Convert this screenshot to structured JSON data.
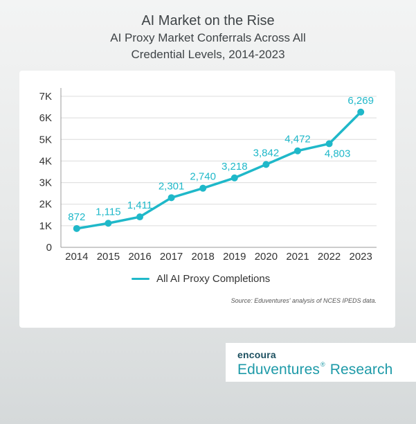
{
  "header": {
    "title": "AI Market on the Rise",
    "subtitle_line1": "AI Proxy Market Conferrals Across All",
    "subtitle_line2": "Credential Levels, 2014-2023"
  },
  "chart_data": {
    "type": "line",
    "title": "AI Market on the Rise",
    "subtitle": "AI Proxy Market Conferrals Across All Credential Levels, 2014-2023",
    "x": [
      "2014",
      "2015",
      "2016",
      "2017",
      "2018",
      "2019",
      "2020",
      "2021",
      "2022",
      "2023"
    ],
    "series": [
      {
        "name": "All AI Proxy Completions",
        "values": [
          872,
          1115,
          1411,
          2301,
          2740,
          3218,
          3842,
          4472,
          4803,
          6269
        ],
        "labels": [
          "872",
          "1,115",
          "1,411",
          "2,301",
          "2,740",
          "3,218",
          "3,842",
          "4,472",
          "4,803",
          "6,269"
        ],
        "color": "#1fb8c9"
      }
    ],
    "ylim": [
      0,
      7000
    ],
    "yticks": [
      0,
      1000,
      2000,
      3000,
      4000,
      5000,
      6000,
      7000
    ],
    "ytick_labels": [
      "0",
      "1K",
      "2K",
      "3K",
      "4K",
      "5K",
      "6K",
      "7K"
    ],
    "grid": "horizontal",
    "legend_position": "bottom"
  },
  "legend": {
    "label": "All AI Proxy Completions"
  },
  "source": "Source: Eduventures' analysis of NCES IPEDS data.",
  "brand": {
    "top": "encoura",
    "bottom_part1": "Eduventures",
    "bottom_mark": "®",
    "bottom_part2": "Research"
  },
  "colors": {
    "line": "#1fb8c9",
    "title": "#3f4447",
    "brand_dark": "#1b4f5f",
    "brand_teal": "#1e9aa8"
  }
}
